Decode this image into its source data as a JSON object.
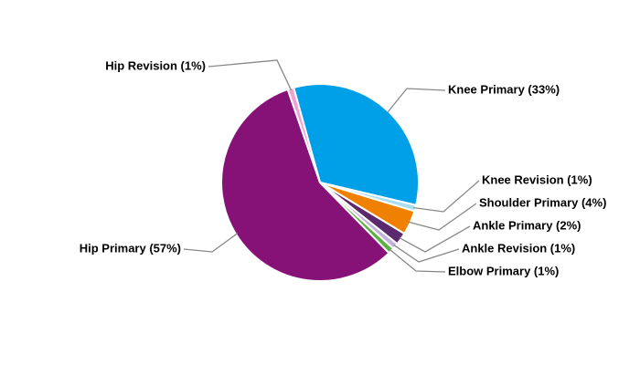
{
  "chart_data": {
    "type": "pie",
    "categories": [
      "Knee Primary (33%)",
      "Knee Revision (1%)",
      "Shoulder Primary (4%)",
      "Ankle Primary (2%)",
      "Ankle Revision (1%)",
      "Elbow Primary (1%)",
      "Hip Primary (57%)",
      "Hip Revision (1%)"
    ],
    "values": [
      33,
      1,
      4,
      2,
      1,
      1,
      57,
      1
    ],
    "colors": [
      "#00a0e9",
      "#a9def2",
      "#f08000",
      "#5b2a6e",
      "#c3b2da",
      "#5fb043",
      "#861177",
      "#f2a2d2"
    ]
  }
}
